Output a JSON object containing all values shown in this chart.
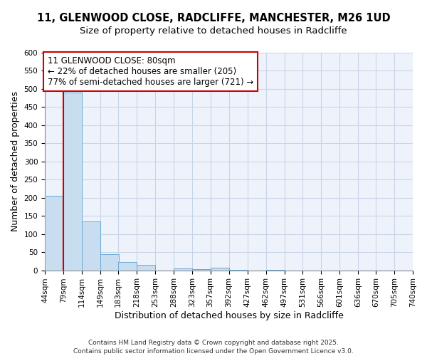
{
  "title1": "11, GLENWOOD CLOSE, RADCLIFFE, MANCHESTER, M26 1UD",
  "title2": "Size of property relative to detached houses in Radcliffe",
  "xlabel": "Distribution of detached houses by size in Radcliffe",
  "ylabel": "Number of detached properties",
  "bins": [
    "44sqm",
    "79sqm",
    "114sqm",
    "149sqm",
    "183sqm",
    "218sqm",
    "253sqm",
    "288sqm",
    "323sqm",
    "357sqm",
    "392sqm",
    "427sqm",
    "462sqm",
    "497sqm",
    "531sqm",
    "566sqm",
    "601sqm",
    "636sqm",
    "670sqm",
    "705sqm",
    "740sqm"
  ],
  "bin_edges": [
    44,
    79,
    114,
    149,
    183,
    218,
    253,
    288,
    323,
    357,
    392,
    427,
    462,
    497,
    531,
    566,
    601,
    636,
    670,
    705,
    740
  ],
  "values": [
    205,
    490,
    135,
    45,
    22,
    15,
    0,
    5,
    3,
    8,
    1,
    0,
    1,
    0,
    0,
    0,
    0,
    0,
    0,
    0
  ],
  "bar_color": "#c9ddf0",
  "bar_edge_color": "#6aaad4",
  "vline_x": 79,
  "vline_color": "#cc0000",
  "annotation_text": "11 GLENWOOD CLOSE: 80sqm\n← 22% of detached houses are smaller (205)\n77% of semi-detached houses are larger (721) →",
  "annotation_box_color": "#cc0000",
  "ylim": [
    0,
    600
  ],
  "yticks": [
    0,
    50,
    100,
    150,
    200,
    250,
    300,
    350,
    400,
    450,
    500,
    550,
    600
  ],
  "footer": "Contains HM Land Registry data © Crown copyright and database right 2025.\nContains public sector information licensed under the Open Government Licence v3.0.",
  "bg_color": "#eef3fb",
  "grid_color": "#c8d4e8",
  "title_fontsize": 10.5,
  "subtitle_fontsize": 9.5,
  "axis_label_fontsize": 9,
  "tick_fontsize": 7.5,
  "annotation_fontsize": 8.5,
  "footer_fontsize": 6.5
}
